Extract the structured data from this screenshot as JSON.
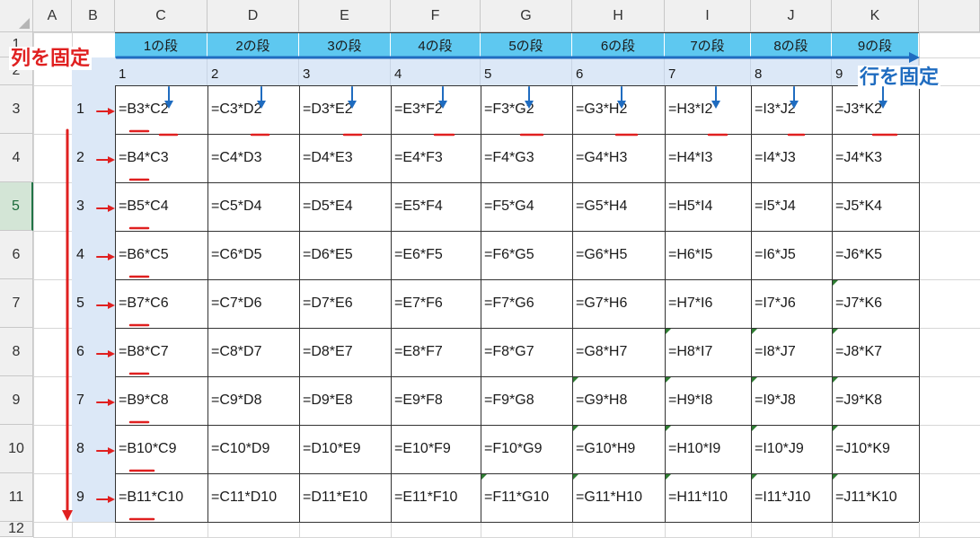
{
  "columns": [
    "A",
    "B",
    "C",
    "D",
    "E",
    "F",
    "G",
    "H",
    "I",
    "J",
    "K"
  ],
  "rows": [
    "1",
    "2",
    "3",
    "4",
    "5",
    "6",
    "7",
    "8",
    "9",
    "10",
    "11",
    "12"
  ],
  "active_row": "5",
  "header_band": [
    "1の段",
    "2の段",
    "3の段",
    "4の段",
    "5の段",
    "6の段",
    "7の段",
    "8の段",
    "9の段"
  ],
  "row2_values": [
    "1",
    "2",
    "3",
    "4",
    "5",
    "6",
    "7",
    "8",
    "9"
  ],
  "colB_values": [
    "1",
    "2",
    "3",
    "4",
    "5",
    "6",
    "7",
    "8",
    "9"
  ],
  "formulas": [
    [
      "=B3*C2",
      "=C3*D2",
      "=D3*E2",
      "=E3*F2",
      "=F3*G2",
      "=G3*H2",
      "=H3*I2",
      "=I3*J2",
      "=J3*K2"
    ],
    [
      "=B4*C3",
      "=C4*D3",
      "=D4*E3",
      "=E4*F3",
      "=F4*G3",
      "=G4*H3",
      "=H4*I3",
      "=I4*J3",
      "=J4*K3"
    ],
    [
      "=B5*C4",
      "=C5*D4",
      "=D5*E4",
      "=E5*F4",
      "=F5*G4",
      "=G5*H4",
      "=H5*I4",
      "=I5*J4",
      "=J5*K4"
    ],
    [
      "=B6*C5",
      "=C6*D5",
      "=D6*E5",
      "=E6*F5",
      "=F6*G5",
      "=G6*H5",
      "=H6*I5",
      "=I6*J5",
      "=J6*K5"
    ],
    [
      "=B7*C6",
      "=C7*D6",
      "=D7*E6",
      "=E7*F6",
      "=F7*G6",
      "=G7*H6",
      "=H7*I6",
      "=I7*J6",
      "=J7*K6"
    ],
    [
      "=B8*C7",
      "=C8*D7",
      "=D8*E7",
      "=E8*F7",
      "=F8*G7",
      "=G8*H7",
      "=H8*I7",
      "=I8*J7",
      "=J8*K7"
    ],
    [
      "=B9*C8",
      "=C9*D8",
      "=D9*E8",
      "=E9*F8",
      "=F9*G8",
      "=G9*H8",
      "=H9*I8",
      "=I9*J8",
      "=J9*K8"
    ],
    [
      "=B10*C9",
      "=C10*D9",
      "=D10*E9",
      "=E10*F9",
      "=F10*G9",
      "=G10*H9",
      "=H10*I9",
      "=I10*J9",
      "=J10*K9"
    ],
    [
      "=B11*C10",
      "=C11*D10",
      "=D11*E10",
      "=E11*F10",
      "=F11*G10",
      "=G11*H10",
      "=H11*I10",
      "=I11*J10",
      "=J11*K10"
    ]
  ],
  "annotations": {
    "fix_column": "列を固定",
    "fix_row": "行を固定"
  },
  "colors": {
    "header_band": "#5ec8f0",
    "value_fill": "#dce8f7",
    "arrow_red": "#e02020",
    "arrow_blue": "#1f6cc0",
    "error_triangle": "#2e7d32"
  }
}
